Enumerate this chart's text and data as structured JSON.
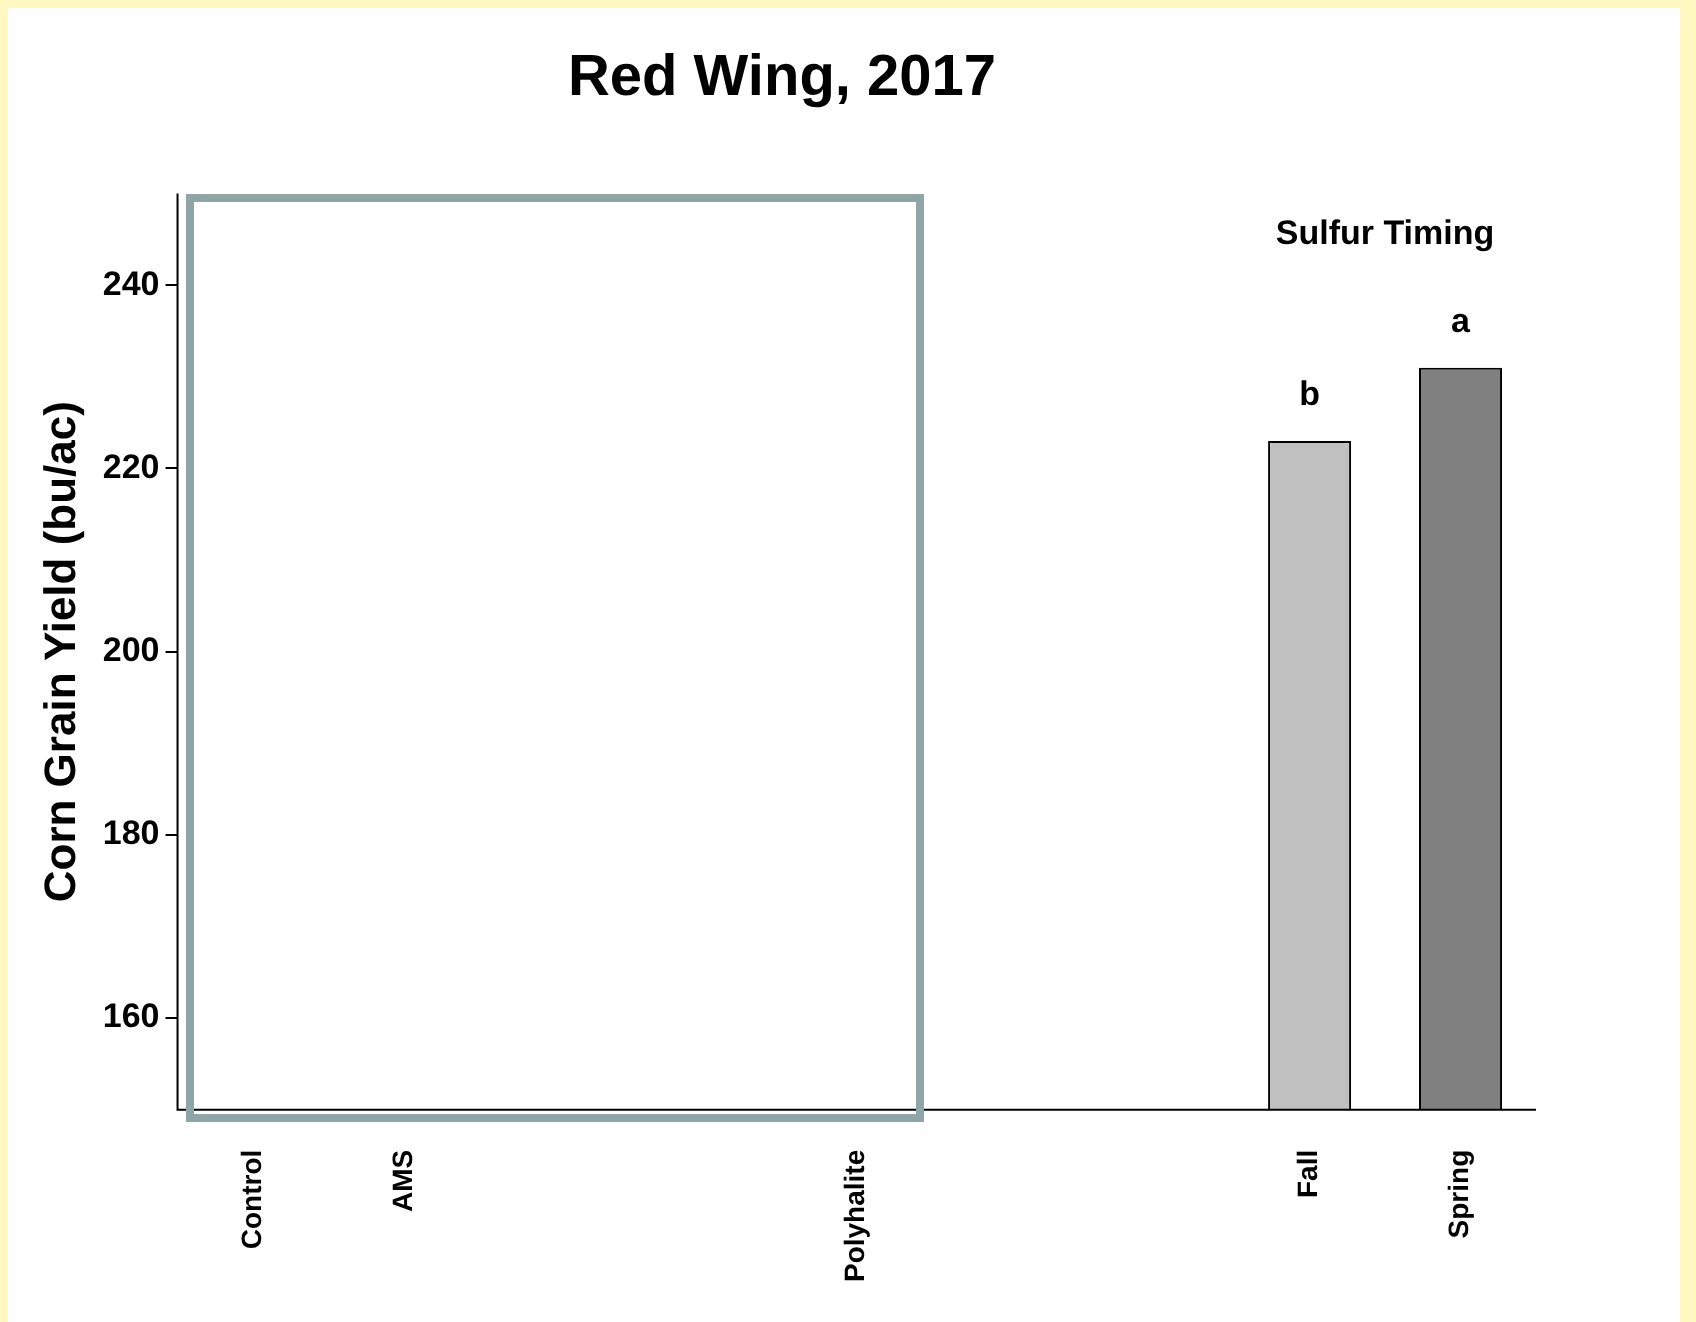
{
  "chart_data": {
    "type": "bar",
    "title": "Red Wing, 2017",
    "ylabel": "Corn Grain Yield (bu/ac)",
    "categories": [
      "Control",
      "AMS",
      null,
      null,
      "Polyhalite",
      null,
      null,
      "Fall",
      "Spring"
    ],
    "values": [
      null,
      null,
      null,
      null,
      null,
      null,
      null,
      223,
      231
    ],
    "colors": [
      "#c0c0c0",
      "#c0c0c0",
      "#c0c0c0",
      "#c0c0c0",
      "#c0c0c0",
      "#c0c0c0",
      "#c0c0c0",
      "#c0c0c0",
      "#808080"
    ],
    "ylim": [
      150,
      250
    ],
    "yticks": [
      160,
      180,
      200,
      220,
      240
    ],
    "grid": false,
    "legend": false,
    "annotations": [
      "Sulfur Timing",
      {
        "text": "b",
        "x": "Fall",
        "y": 223
      },
      {
        "text": "a",
        "x": "Spring",
        "y": 231
      }
    ]
  }
}
